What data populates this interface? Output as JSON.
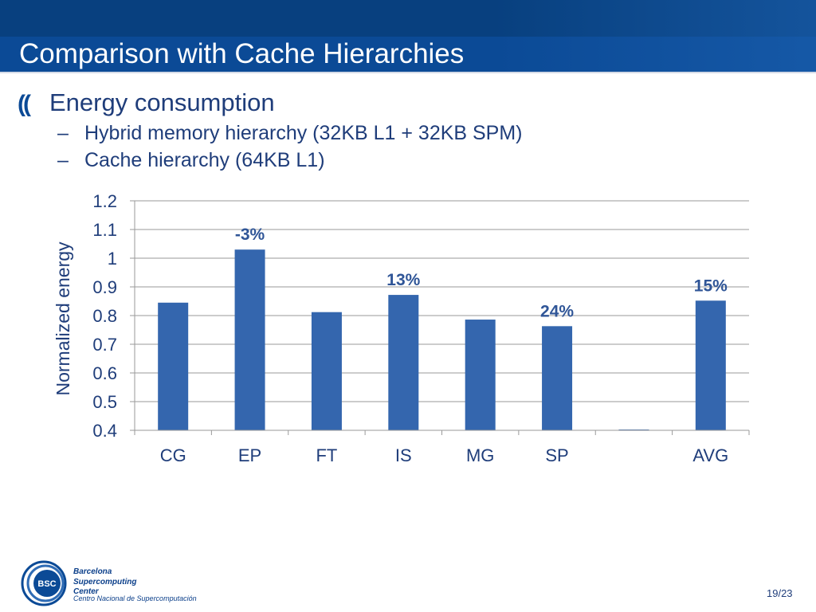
{
  "slide": {
    "title": "Comparison with Cache Hierarchies",
    "bullet_icon": "((",
    "bullet": "Energy consumption",
    "sub_items": [
      "Hybrid memory hierarchy (32KB L1 + 32KB SPM)",
      "Cache hierarchy (64KB L1)"
    ],
    "sub_dash": "–",
    "page_number": "19/23"
  },
  "logo": {
    "icon": "bsc-logo-icon",
    "badge": "BSC",
    "lines": [
      "Barcelona",
      "Supercomputing",
      "Center"
    ],
    "subline": "Centro Nacional de Supercomputación"
  },
  "colors": {
    "header": "#0b4a96",
    "bar": "#3466ae",
    "text": "#1f3d7a",
    "annotation": "#2f5597"
  },
  "chart_data": {
    "type": "bar",
    "categories": [
      "CG",
      "EP",
      "FT",
      "IS",
      "MG",
      "SP",
      "",
      "AVG"
    ],
    "values": [
      0.845,
      1.03,
      0.812,
      0.872,
      0.786,
      0.763,
      0.4,
      0.852
    ],
    "annotations": [
      "",
      "-3%",
      "",
      "13%",
      "",
      "24%",
      "",
      "15%"
    ],
    "ylabel": "Normalized energy",
    "xlabel": "",
    "ylim": [
      0.4,
      1.2
    ],
    "yticks": [
      0.4,
      0.5,
      0.6,
      0.7,
      0.8,
      0.9,
      1,
      1.1,
      1.2
    ],
    "ytick_labels": [
      "0.4",
      "0.5",
      "0.6",
      "0.7",
      "0.8",
      "0.9",
      "1",
      "1.1",
      "1.2"
    ],
    "grid": true,
    "legend": "none"
  }
}
